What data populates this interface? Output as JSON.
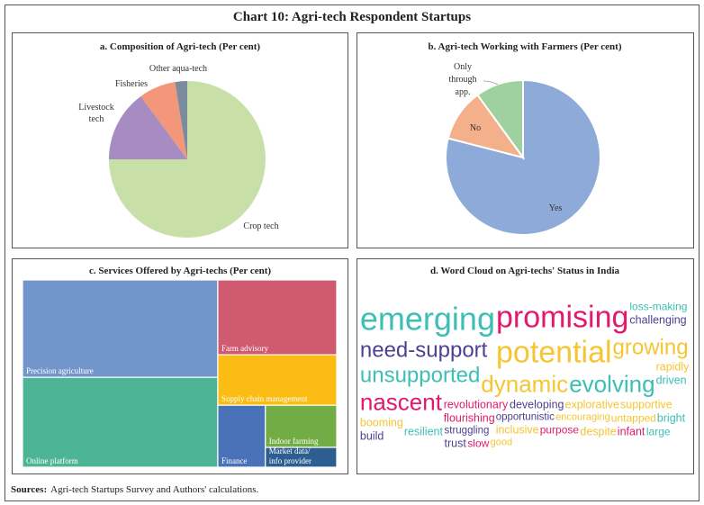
{
  "title": "Chart 10: Agri-tech Respondent Startups",
  "source_label": "Sources:",
  "source_text": "Agri-tech Startups Survey and Authors' calculations.",
  "chart_data": [
    {
      "type": "pie",
      "title": "a. Composition of Agri-tech (Per cent)",
      "labels": [
        "Crop tech",
        "Livestock tech",
        "Fisheries",
        "Other aqua-tech"
      ],
      "label_lines": [
        [
          "Crop tech"
        ],
        [
          "Livestock",
          "tech"
        ],
        [
          "Fisheries"
        ],
        [
          "Other aqua-tech"
        ]
      ],
      "values": [
        75,
        14.9,
        7.6,
        2.5
      ],
      "colors": [
        "#c8e0a8",
        "#a68cc0",
        "#f4967a",
        "#7a8c9e"
      ]
    },
    {
      "type": "pie",
      "title": "b. Agri-tech Working with Farmers (Per cent)",
      "labels": [
        "Yes",
        "No",
        "Only through app."
      ],
      "label_lines": [
        [
          "Yes"
        ],
        [
          "No"
        ],
        [
          "Only",
          "through",
          "app."
        ]
      ],
      "values": [
        79,
        11,
        10
      ],
      "colors": [
        "#8eaad8",
        "#f4b08a",
        "#9fd1a0"
      ]
    },
    {
      "type": "treemap",
      "title": "c. Services Offered by Agri-techs (Per cent)",
      "labels": [
        "Precision agriculture",
        "Online platform",
        "Farm advisory",
        "Supply chain management",
        "Finance",
        "Indoor farming",
        "Market data/ info provider"
      ],
      "label_lines": [
        [
          "Precision agriculture"
        ],
        [
          "Online platform"
        ],
        [
          "Farm advisory"
        ],
        [
          "Supply chain management"
        ],
        [
          "Finance"
        ],
        [
          "Indoor farming"
        ],
        [
          "Market data/",
          "info provider"
        ]
      ],
      "values": [
        32.3,
        29.8,
        15.1,
        10.2,
        5.0,
        5.1,
        2.4
      ],
      "colors": [
        "#7296cc",
        "#4db595",
        "#d05a70",
        "#fbbd14",
        "#4a72b8",
        "#72ac44",
        "#2c5e92"
      ]
    },
    {
      "type": "wordcloud",
      "title": "d. Word Cloud on Agri-techs' Status in India",
      "palette": {
        "yellow": "#f5c532",
        "purple": "#4e3f91",
        "pink": "#e21a6c",
        "teal": "#3dbfb4"
      },
      "words": [
        {
          "text": "dynamic",
          "color": "yellow"
        },
        {
          "text": "challenging",
          "color": "purple"
        },
        {
          "text": "driven",
          "color": "teal"
        },
        {
          "text": "revolutionary",
          "color": "pink"
        },
        {
          "text": "struggling",
          "color": "purple"
        },
        {
          "text": "opportunistic",
          "color": "purple"
        },
        {
          "text": "developing",
          "color": "purple"
        },
        {
          "text": "unsupported",
          "color": "teal"
        },
        {
          "text": "booming",
          "color": "yellow"
        },
        {
          "text": "untapped",
          "color": "yellow"
        },
        {
          "text": "trust",
          "color": "purple"
        },
        {
          "text": "promising",
          "color": "pink"
        },
        {
          "text": "flourishing",
          "color": "pink"
        },
        {
          "text": "bright",
          "color": "teal"
        },
        {
          "text": "slow",
          "color": "pink"
        },
        {
          "text": "purpose",
          "color": "pink"
        },
        {
          "text": "build",
          "color": "purple"
        },
        {
          "text": "emerging",
          "color": "teal"
        },
        {
          "text": "inclusive",
          "color": "yellow"
        },
        {
          "text": "encouraging",
          "color": "yellow"
        },
        {
          "text": "good",
          "color": "yellow"
        },
        {
          "text": "nascent",
          "color": "pink"
        },
        {
          "text": "potential",
          "color": "yellow"
        },
        {
          "text": "rapidly",
          "color": "yellow"
        },
        {
          "text": "despite",
          "color": "yellow"
        },
        {
          "text": "resilient",
          "color": "teal"
        },
        {
          "text": "need-support",
          "color": "purple"
        },
        {
          "text": "large",
          "color": "teal"
        },
        {
          "text": "loss-making",
          "color": "teal"
        },
        {
          "text": "growing",
          "color": "yellow"
        },
        {
          "text": "supportive",
          "color": "yellow"
        },
        {
          "text": "explorative",
          "color": "yellow"
        },
        {
          "text": "infant",
          "color": "pink"
        },
        {
          "text": "evolving",
          "color": "teal"
        }
      ]
    }
  ]
}
